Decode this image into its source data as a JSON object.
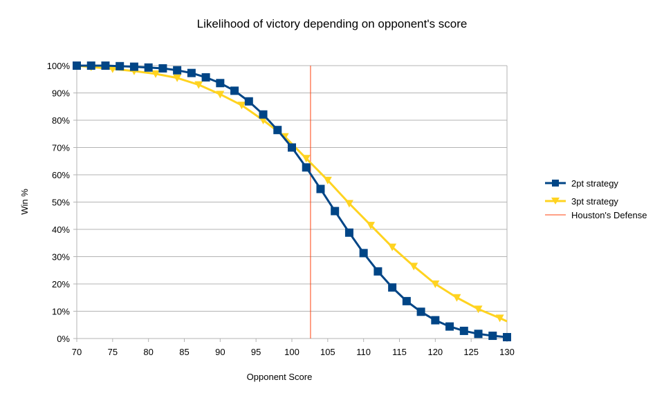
{
  "chart_data": {
    "type": "line",
    "title": "Likelihood of victory depending on opponent's score",
    "xlabel": "Opponent Score",
    "ylabel": "Win %",
    "xlim": [
      70,
      130
    ],
    "ylim": [
      0,
      100
    ],
    "x_ticks": [
      "70",
      "75",
      "80",
      "85",
      "90",
      "95",
      "100",
      "105",
      "110",
      "115",
      "120",
      "125",
      "130"
    ],
    "y_ticks": [
      "0%",
      "10%",
      "20%",
      "30%",
      "40%",
      "50%",
      "60%",
      "70%",
      "80%",
      "90%",
      "100%"
    ],
    "grid": true,
    "legend_position": "right",
    "series": [
      {
        "name": "2pt strategy",
        "color": "#004586",
        "marker": "square",
        "x": [
          70,
          72,
          74,
          76,
          78,
          80,
          82,
          84,
          86,
          88,
          90,
          92,
          94,
          96,
          98,
          100,
          102,
          104,
          106,
          108,
          110,
          112,
          114,
          116,
          118,
          120,
          122,
          124,
          126,
          128,
          130
        ],
        "y": [
          100,
          100,
          100,
          99.8,
          99.6,
          99.3,
          99,
          98.3,
          97.3,
          95.7,
          93.6,
          90.8,
          86.9,
          82.1,
          76.4,
          70,
          62.7,
          54.8,
          46.7,
          38.8,
          31.3,
          24.6,
          18.7,
          13.7,
          9.8,
          6.7,
          4.4,
          2.8,
          1.7,
          1.0,
          0.5
        ]
      },
      {
        "name": "3pt strategy",
        "color": "#ffd320",
        "marker": "triangle-down",
        "x": [
          70,
          72,
          75,
          78,
          81,
          84,
          87,
          90,
          93,
          96,
          99,
          102,
          105,
          108,
          111,
          114,
          117,
          120,
          123,
          126,
          129,
          130
        ],
        "y": [
          100,
          99.5,
          98.8,
          98,
          97,
          95.5,
          93,
          89.5,
          85.5,
          80,
          74,
          66,
          58,
          49.5,
          41.5,
          33.5,
          26.5,
          20,
          15,
          10.8,
          7.5,
          6.3
        ]
      },
      {
        "name": "Houston's Defense",
        "color": "#ff420e",
        "type": "vertical-line",
        "x": 102.6
      }
    ]
  }
}
